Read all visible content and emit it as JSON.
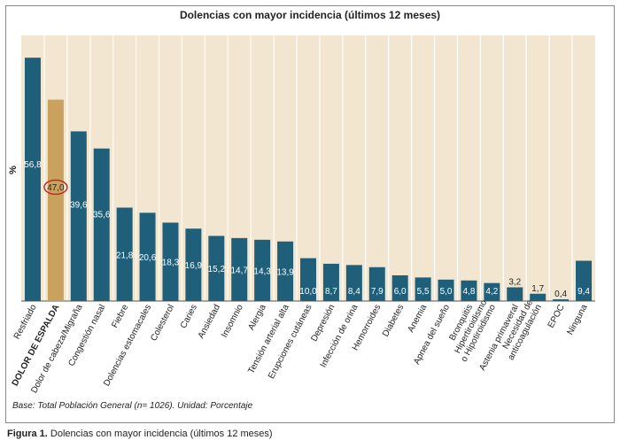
{
  "figure_caption_label": "Figura 1.",
  "figure_caption_text": "Dolencias con mayor incidencia (últimos 12 meses)",
  "footnote": "Base: Total Población General (n= 1026). Unidad: Porcentaje",
  "chart_data": {
    "type": "bar",
    "title": "Dolencias con mayor incidencia (últimos 12 meses)",
    "ylabel": "%",
    "xlabel": "",
    "ylim": [
      0,
      62
    ],
    "categories": [
      "Resfriado",
      "DOLOR DE ESPALDA",
      "Dolor de cabeza/Migraña",
      "Congestión nasal",
      "Fiebre",
      "Dolencias estomacales",
      "Colesterol",
      "Caries",
      "Ansiedad",
      "Insomnio",
      "Alergia",
      "Tensión arterial alta",
      "Erupciones cutáneas",
      "Depresión",
      "Infección de orina",
      "Hemorroides",
      "Diabetes",
      "Anemia",
      "Apnea del sueño",
      "Bronquitis",
      "Hipertiroidismo o Hipotiroidismo",
      "Astenia primaveral",
      "Necesidad de anticoagulación",
      "EPOC",
      "Ninguna"
    ],
    "values": [
      56.8,
      47.0,
      39.6,
      35.6,
      21.8,
      20.6,
      18.3,
      16.9,
      15.2,
      14.7,
      14.3,
      13.9,
      10.0,
      8.7,
      8.4,
      7.9,
      6.0,
      5.5,
      5.0,
      4.8,
      4.2,
      3.2,
      1.7,
      0.4,
      9.4
    ],
    "value_labels": [
      "56,8",
      "47,0",
      "39,6",
      "35,6",
      "21,8",
      "20,6",
      "18,3",
      "16,9",
      "15,2",
      "14,7",
      "14,3",
      "13,9",
      "10,0",
      "8,7",
      "8,4",
      "7,9",
      "6,0",
      "5,5",
      "5,0",
      "4,8",
      "4,2",
      "3,2",
      "1,7",
      "0,4",
      "9,4"
    ],
    "category_label_lines": [
      [
        "Resfriado"
      ],
      [
        "DOLOR DE ESPALDA"
      ],
      [
        "Dolor de cabeza/Migraña"
      ],
      [
        "Congestión nasal"
      ],
      [
        "Fiebre"
      ],
      [
        "Dolencias estomacales"
      ],
      [
        "Colesterol"
      ],
      [
        "Caries"
      ],
      [
        "Ansiedad"
      ],
      [
        "Insomnio"
      ],
      [
        "Alergia"
      ],
      [
        "Tensión arterial alta"
      ],
      [
        "Erupciones cutáneas"
      ],
      [
        "Depresión"
      ],
      [
        "Infección de orina"
      ],
      [
        "Hemorroides"
      ],
      [
        "Diabetes"
      ],
      [
        "Anemia"
      ],
      [
        "Apnea del sueño"
      ],
      [
        "Bronquitis"
      ],
      [
        "Hipertiroidismo",
        "o Hipotiroidismo"
      ],
      [
        "Astenia primaveral"
      ],
      [
        "Necesidad de",
        "anticoagulación"
      ],
      [
        "EPOC"
      ],
      [
        "Ninguna"
      ]
    ],
    "highlight_index": 1,
    "colors": {
      "bar": "#1f5f7a",
      "highlight_bar": "#c9a35e",
      "background": "#f3e6d0",
      "stripe": "#ffffff",
      "highlight_circle": "#c0201e"
    }
  }
}
